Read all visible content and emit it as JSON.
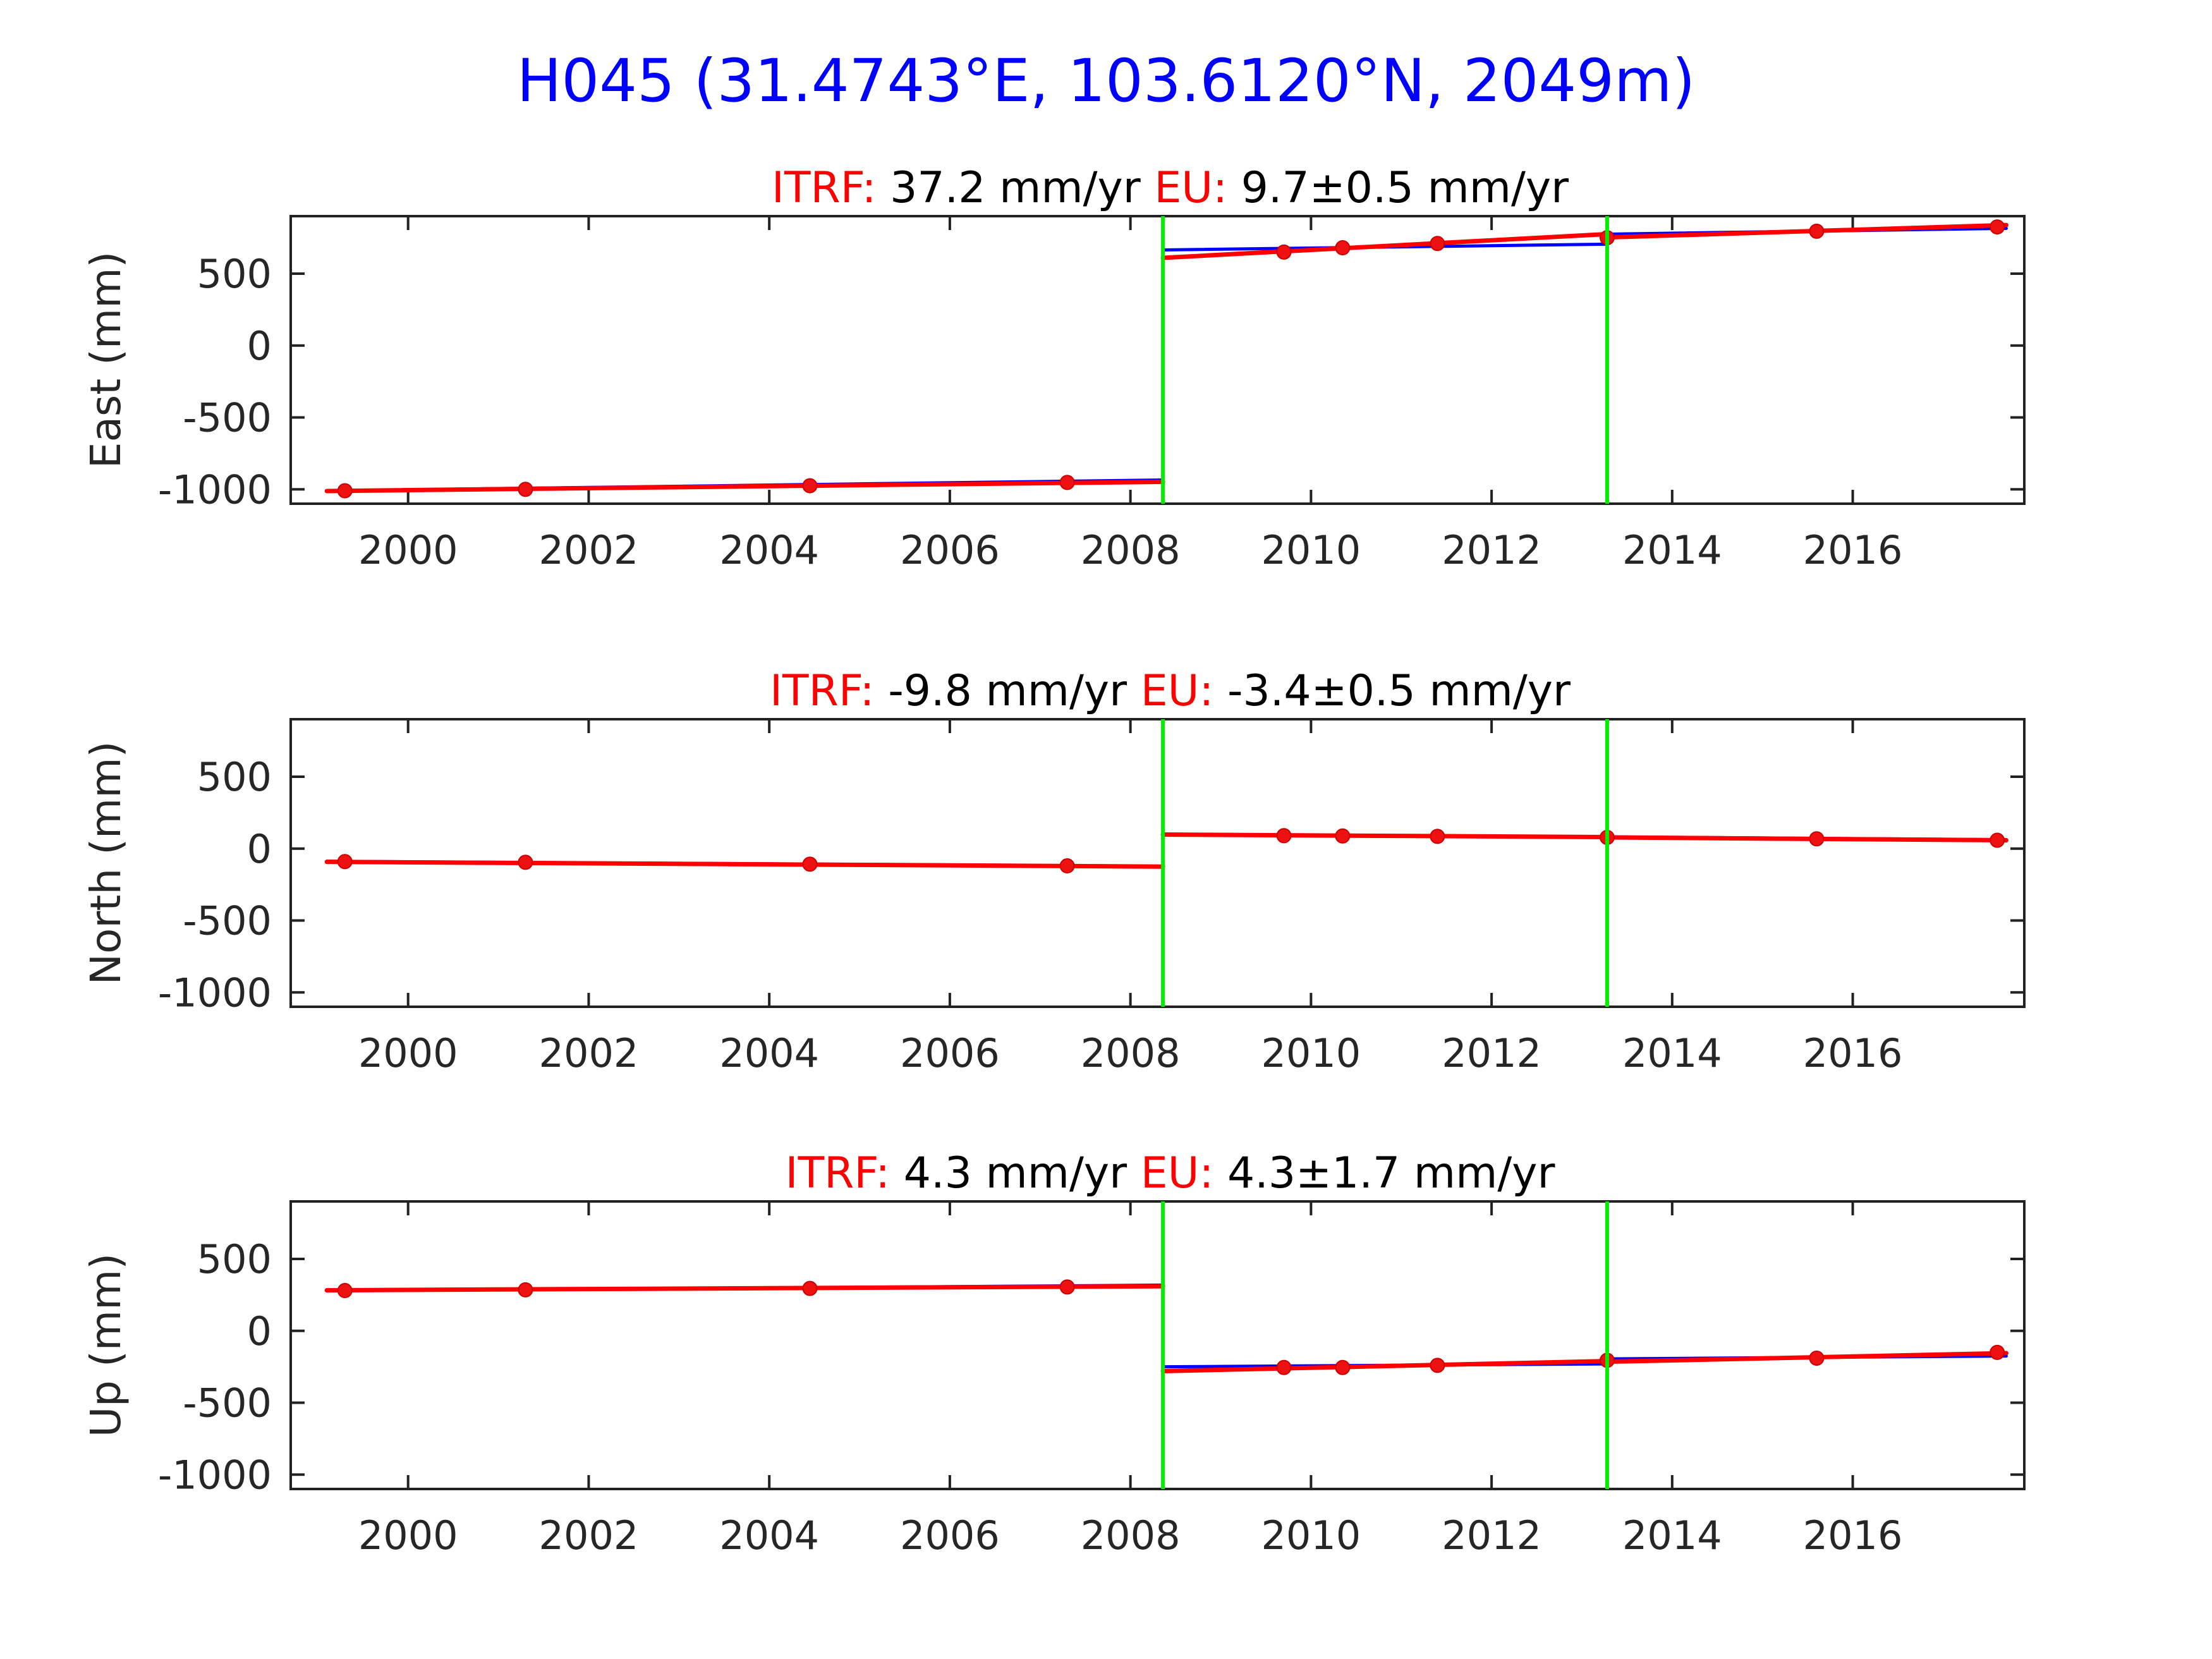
{
  "page_title": "H045 (31.4743°E, 103.6120°N, 2049m)",
  "colors": {
    "title": "#0000ff",
    "label_red": "#ff0000",
    "fit_blue": "#0000ff",
    "model_red": "#ff0000",
    "breakline": "#00ee00",
    "points": "#ee1111",
    "axis": "#222222"
  },
  "chart_data": [
    {
      "type": "line",
      "title": {
        "itrf_label": "ITRF:",
        "itrf_value": "37.2 mm/yr",
        "eu_label": "EU:",
        "eu_value": "9.7±0.5 mm/yr"
      },
      "xlabel": "",
      "ylabel": "East (mm)",
      "xlim": [
        1998.7,
        2017.9
      ],
      "ylim": [
        -1100,
        900
      ],
      "x_ticks": [
        2000,
        2002,
        2004,
        2006,
        2008,
        2010,
        2012,
        2014,
        2016
      ],
      "y_ticks": [
        500,
        0,
        -500,
        -1000
      ],
      "breaks": [
        2008.36,
        2013.28
      ],
      "points": [
        [
          1999.3,
          -1010
        ],
        [
          2001.3,
          -1000
        ],
        [
          2004.45,
          -975
        ],
        [
          2007.3,
          -952
        ],
        [
          2009.7,
          650
        ],
        [
          2010.35,
          680
        ],
        [
          2011.4,
          710
        ],
        [
          2013.28,
          750
        ],
        [
          2015.6,
          795
        ],
        [
          2017.6,
          825
        ]
      ],
      "series": [
        {
          "segments": [
            [
              [
                1999.1,
                -1010
              ],
              [
                2008.36,
                -935
              ]
            ],
            [
              [
                2008.36,
                665
              ],
              [
                2013.28,
                705
              ]
            ],
            [
              [
                2013.28,
                775
              ],
              [
                2017.7,
                815
              ]
            ]
          ]
        },
        {
          "segments": [
            [
              [
                1999.1,
                -1012
              ],
              [
                2008.36,
                -948
              ]
            ],
            [
              [
                2008.36,
                610
              ],
              [
                2013.28,
                775
              ]
            ],
            [
              [
                2013.28,
                752
              ],
              [
                2017.7,
                838
              ]
            ]
          ]
        }
      ]
    },
    {
      "type": "line",
      "title": {
        "itrf_label": "ITRF:",
        "itrf_value": "-9.8 mm/yr",
        "eu_label": "EU:",
        "eu_value": "-3.4±0.5 mm/yr"
      },
      "xlabel": "",
      "ylabel": "North (mm)",
      "xlim": [
        1998.7,
        2017.9
      ],
      "ylim": [
        -1100,
        900
      ],
      "x_ticks": [
        2000,
        2002,
        2004,
        2006,
        2008,
        2010,
        2012,
        2014,
        2016
      ],
      "y_ticks": [
        500,
        0,
        -500,
        -1000
      ],
      "breaks": [
        2008.36,
        2013.28
      ],
      "points": [
        [
          1999.3,
          -90
        ],
        [
          2001.3,
          -95
        ],
        [
          2004.45,
          -108
        ],
        [
          2007.3,
          -120
        ],
        [
          2009.7,
          90
        ],
        [
          2010.35,
          88
        ],
        [
          2011.4,
          85
        ],
        [
          2013.28,
          78
        ],
        [
          2015.6,
          68
        ],
        [
          2017.6,
          58
        ]
      ],
      "series": [
        {
          "segments": [
            [
              [
                1999.1,
                -88
              ],
              [
                2008.36,
                -122
              ]
            ],
            [
              [
                2008.36,
                100
              ],
              [
                2013.28,
                82
              ]
            ],
            [
              [
                2013.28,
                82
              ],
              [
                2017.7,
                62
              ]
            ]
          ]
        },
        {
          "segments": [
            [
              [
                1999.1,
                -92
              ],
              [
                2008.36,
                -125
              ]
            ],
            [
              [
                2008.36,
                98
              ],
              [
                2013.28,
                80
              ]
            ],
            [
              [
                2013.28,
                78
              ],
              [
                2017.7,
                58
              ]
            ]
          ]
        }
      ]
    },
    {
      "type": "line",
      "title": {
        "itrf_label": "ITRF:",
        "itrf_value": "4.3 mm/yr",
        "eu_label": "EU:",
        "eu_value": "4.3±1.7 mm/yr"
      },
      "xlabel": "",
      "ylabel": "Up (mm)",
      "xlim": [
        1998.7,
        2017.9
      ],
      "ylim": [
        -1100,
        900
      ],
      "x_ticks": [
        2000,
        2002,
        2004,
        2006,
        2008,
        2010,
        2012,
        2014,
        2016
      ],
      "y_ticks": [
        500,
        0,
        -500,
        -1000
      ],
      "breaks": [
        2008.36,
        2013.28
      ],
      "points": [
        [
          1999.3,
          280
        ],
        [
          2001.3,
          285
        ],
        [
          2004.45,
          295
        ],
        [
          2007.3,
          305
        ],
        [
          2009.7,
          -255
        ],
        [
          2010.35,
          -255
        ],
        [
          2011.4,
          -240
        ],
        [
          2013.28,
          -205
        ],
        [
          2015.6,
          -190
        ],
        [
          2017.6,
          -150
        ]
      ],
      "series": [
        {
          "segments": [
            [
              [
                1999.1,
                278
              ],
              [
                2008.36,
                318
              ]
            ],
            [
              [
                2008.36,
                -250
              ],
              [
                2013.28,
                -230
              ]
            ],
            [
              [
                2013.28,
                -195
              ],
              [
                2017.7,
                -175
              ]
            ]
          ]
        },
        {
          "segments": [
            [
              [
                1999.1,
                282
              ],
              [
                2008.36,
                310
              ]
            ],
            [
              [
                2008.36,
                -280
              ],
              [
                2013.28,
                -210
              ]
            ],
            [
              [
                2013.28,
                -215
              ],
              [
                2017.7,
                -155
              ]
            ]
          ]
        }
      ]
    }
  ]
}
